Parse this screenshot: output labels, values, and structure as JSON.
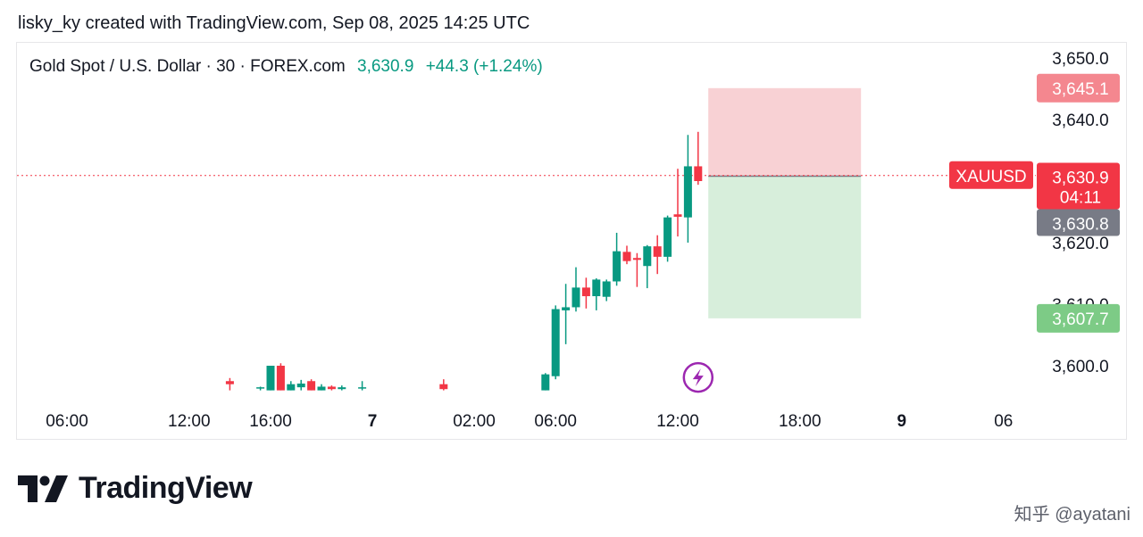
{
  "header": {
    "text": "lisky_ky created with TradingView.com, Sep 08, 2025 14:25 UTC"
  },
  "titlebar": {
    "symbol": "Gold Spot / U.S. Dollar · 30 · FOREX.com",
    "price": "3,630.9",
    "change": "+44.3 (+1.24%)"
  },
  "colors": {
    "up": "#089981",
    "down": "#f23645",
    "stop_zone": "#f7c9cc",
    "target_zone": "#d7eedb",
    "gray_label": "#787b86",
    "green_label": "#7dcb86",
    "pink_label": "#f4878f",
    "event_icon": "#9c27b0"
  },
  "chart_data": {
    "type": "candlestick",
    "symbol": "XAUUSD",
    "timeframe": "30",
    "ylim": [
      3596,
      3654
    ],
    "y_ticks": [
      {
        "value": 3650,
        "label": "3,650.0"
      },
      {
        "value": 3640,
        "label": "3,640.0"
      },
      {
        "value": 3620,
        "label": "3,620.0"
      },
      {
        "value": 3610,
        "label": "3,610.0"
      },
      {
        "value": 3600,
        "label": "3,600.0"
      }
    ],
    "x_ticks": [
      {
        "t": 6,
        "label": "06:00",
        "bold": false
      },
      {
        "t": 12,
        "label": "12:00",
        "bold": false
      },
      {
        "t": 16,
        "label": "16:00",
        "bold": false
      },
      {
        "t": 21,
        "label": "7",
        "bold": true
      },
      {
        "t": 26,
        "label": "02:00",
        "bold": false
      },
      {
        "t": 30,
        "label": "06:00",
        "bold": false
      },
      {
        "t": 36,
        "label": "12:00",
        "bold": false
      },
      {
        "t": 42,
        "label": "18:00",
        "bold": false
      },
      {
        "t": 47,
        "label": "9",
        "bold": true
      },
      {
        "t": 52,
        "label": "06",
        "bold": false
      }
    ],
    "candles": [
      {
        "t": 14.0,
        "o": 3597.5,
        "h": 3598.0,
        "l": 3596.0,
        "c": 3597.0
      },
      {
        "t": 15.5,
        "o": 3596.4,
        "h": 3596.6,
        "l": 3596.0,
        "c": 3596.5
      },
      {
        "t": 16.0,
        "o": 3596.0,
        "h": 3600.0,
        "l": 3596.0,
        "c": 3600.0
      },
      {
        "t": 16.5,
        "o": 3600.0,
        "h": 3600.4,
        "l": 3596.0,
        "c": 3596.0
      },
      {
        "t": 17.0,
        "o": 3596.0,
        "h": 3597.5,
        "l": 3596.0,
        "c": 3597.0
      },
      {
        "t": 17.5,
        "o": 3596.5,
        "h": 3597.7,
        "l": 3596.0,
        "c": 3597.1
      },
      {
        "t": 18.0,
        "o": 3597.5,
        "h": 3597.8,
        "l": 3596.0,
        "c": 3596.0
      },
      {
        "t": 18.5,
        "o": 3596.0,
        "h": 3597.0,
        "l": 3596.0,
        "c": 3596.6
      },
      {
        "t": 19.0,
        "o": 3596.6,
        "h": 3596.8,
        "l": 3596.0,
        "c": 3596.2
      },
      {
        "t": 19.5,
        "o": 3596.2,
        "h": 3596.8,
        "l": 3596.0,
        "c": 3596.5
      },
      {
        "t": 20.5,
        "o": 3596.3,
        "h": 3597.5,
        "l": 3596.0,
        "c": 3596.5
      },
      {
        "t": 24.5,
        "o": 3597.0,
        "h": 3597.8,
        "l": 3596.0,
        "c": 3596.2
      },
      {
        "t": 29.5,
        "o": 3596.0,
        "h": 3598.8,
        "l": 3596.0,
        "c": 3598.6
      },
      {
        "t": 30.0,
        "o": 3598.3,
        "h": 3609.8,
        "l": 3597.8,
        "c": 3609.2
      },
      {
        "t": 30.5,
        "o": 3609.0,
        "h": 3613.3,
        "l": 3603.5,
        "c": 3609.5
      },
      {
        "t": 31.0,
        "o": 3609.5,
        "h": 3616.0,
        "l": 3608.8,
        "c": 3612.7
      },
      {
        "t": 31.5,
        "o": 3612.7,
        "h": 3614.3,
        "l": 3609.3,
        "c": 3611.3
      },
      {
        "t": 32.0,
        "o": 3611.3,
        "h": 3614.2,
        "l": 3609.0,
        "c": 3614.0
      },
      {
        "t": 32.5,
        "o": 3611.2,
        "h": 3614.0,
        "l": 3610.5,
        "c": 3613.7
      },
      {
        "t": 33.0,
        "o": 3613.7,
        "h": 3621.6,
        "l": 3613.0,
        "c": 3618.6
      },
      {
        "t": 33.5,
        "o": 3618.5,
        "h": 3619.5,
        "l": 3616.5,
        "c": 3617.0
      },
      {
        "t": 34.0,
        "o": 3617.5,
        "h": 3618.3,
        "l": 3612.8,
        "c": 3617.2
      },
      {
        "t": 34.5,
        "o": 3616.2,
        "h": 3619.6,
        "l": 3612.6,
        "c": 3619.4
      },
      {
        "t": 35.0,
        "o": 3619.4,
        "h": 3621.2,
        "l": 3614.9,
        "c": 3617.7
      },
      {
        "t": 35.5,
        "o": 3617.7,
        "h": 3624.4,
        "l": 3616.9,
        "c": 3624.1
      },
      {
        "t": 36.0,
        "o": 3624.6,
        "h": 3632.0,
        "l": 3621.0,
        "c": 3624.2
      },
      {
        "t": 36.5,
        "o": 3624.1,
        "h": 3637.5,
        "l": 3620.0,
        "c": 3632.4
      },
      {
        "t": 37.0,
        "o": 3632.4,
        "h": 3638.0,
        "l": 3629.4,
        "c": 3630.0
      }
    ],
    "event_marker": {
      "t": 37.0,
      "y": 3598.1,
      "icon": "lightning-icon"
    },
    "current_price": {
      "value": 3630.9,
      "label": "3,630.9",
      "countdown": "04:11",
      "symbol_label": "XAUUSD"
    },
    "position_tool": {
      "t_start": 37.5,
      "t_end": 45.0,
      "entry": 3630.8,
      "stop": 3645.1,
      "target": 3607.7,
      "entry_label": "3,630.8",
      "stop_label": "3,645.1",
      "target_label": "3,607.7"
    }
  },
  "footer": {
    "brand": "TradingView",
    "credit": "知乎 @ayatani"
  }
}
